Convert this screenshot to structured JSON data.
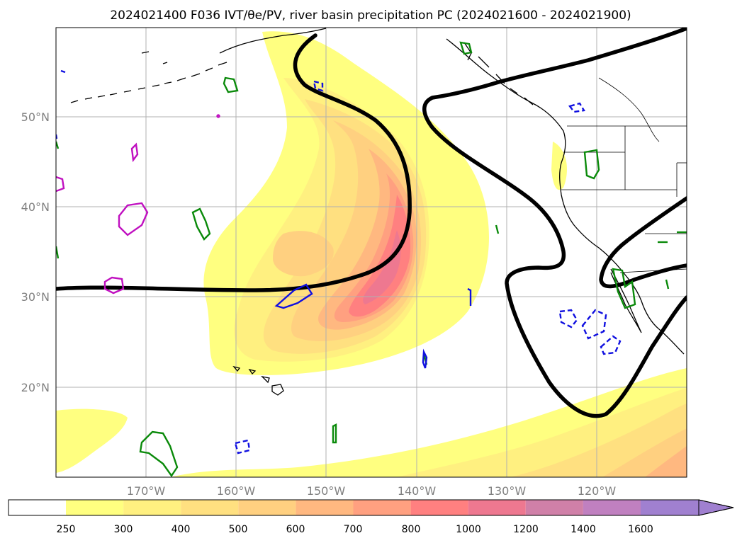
{
  "title": "2024021400 F036 IVT/θe/PV, river basin precipitation PC (2024021600 - 2024021900)",
  "map": {
    "lon_labels": [
      "170°W",
      "160°W",
      "150°W",
      "140°W",
      "130°W",
      "120°W"
    ],
    "lat_labels": [
      "50°N",
      "40°N",
      "30°N",
      "20°N"
    ],
    "grid": true
  },
  "colorbar": {
    "ticks": [
      "250",
      "300",
      "400",
      "500",
      "600",
      "700",
      "800",
      "1000",
      "1200",
      "1400",
      "1600"
    ],
    "colors": [
      "#ffffff",
      "#ffff80",
      "#fff080",
      "#ffe080",
      "#ffd080",
      "#ffb880",
      "#ffa080",
      "#ff8080",
      "#ee7890",
      "#d080a8",
      "#c080c0",
      "#a080d0"
    ],
    "extend": "max"
  },
  "legend_colors": {
    "pv": "#000000",
    "theta_e_solid": "#0a8a0a",
    "theta_e_blue": "#1010e0",
    "magenta": "#c010c0"
  }
}
